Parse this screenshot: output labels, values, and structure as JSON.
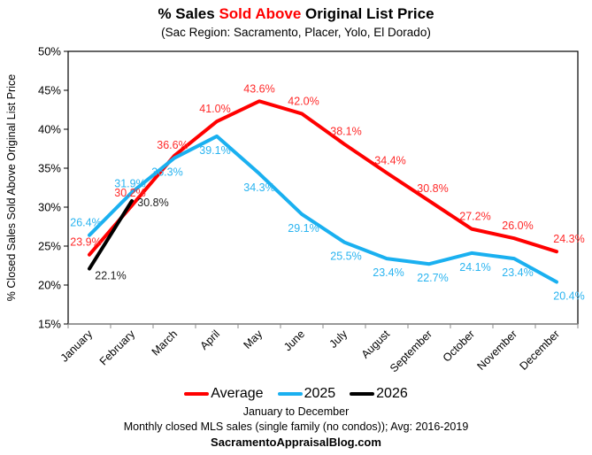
{
  "chart_data": {
    "type": "line",
    "title_parts": [
      "% Sales ",
      "Sold Above",
      " Original List Price"
    ],
    "subtitle": "(Sac Region: Sacramento, Placer, Yolo, El Dorado)",
    "ylabel": "% Closed Sales Sold Above Original List Price",
    "xlabel": "January to December",
    "ylim": [
      15,
      50
    ],
    "yticks": [
      15,
      20,
      25,
      30,
      35,
      40,
      45,
      50
    ],
    "ytick_labels": [
      "15%",
      "20%",
      "25%",
      "30%",
      "35%",
      "40%",
      "45%",
      "50%"
    ],
    "grid": false,
    "categories": [
      "January",
      "February",
      "March",
      "April",
      "May",
      "June",
      "July",
      "August",
      "September",
      "October",
      "November",
      "December"
    ],
    "series": [
      {
        "name": "Average",
        "color": "#ff0000",
        "values": [
          23.9,
          30.2,
          36.6,
          41.0,
          43.6,
          42.0,
          38.1,
          34.4,
          30.8,
          27.2,
          26.0,
          24.3
        ],
        "labels": [
          "23.9%",
          "30.2%",
          "36.6%",
          "41.0%",
          "43.6%",
          "42.0%",
          "38.1%",
          "34.4%",
          "30.8%",
          "27.2%",
          "26.0%",
          "24.3%"
        ]
      },
      {
        "name": "2025",
        "color": "#1ab0f0",
        "values": [
          26.4,
          31.9,
          36.3,
          39.1,
          34.3,
          29.1,
          25.5,
          23.4,
          22.7,
          24.1,
          23.4,
          20.4
        ],
        "labels": [
          "26.4%",
          "31.9%",
          "36.3%",
          "39.1%",
          "34.3%",
          "29.1%",
          "25.5%",
          "23.4%",
          "22.7%",
          "24.1%",
          "23.4%",
          "20.4%"
        ]
      },
      {
        "name": "2026",
        "color": "#000000",
        "values": [
          22.1,
          30.8
        ],
        "labels": [
          "22.1%",
          "30.8%"
        ]
      }
    ],
    "legend": "bottom-center"
  },
  "footer": {
    "line1": "January to December",
    "line2": "Monthly closed MLS sales (single family (no condos)); Avg: 2016-2019",
    "line3": "SacramentoAppraisalBlog.com"
  }
}
